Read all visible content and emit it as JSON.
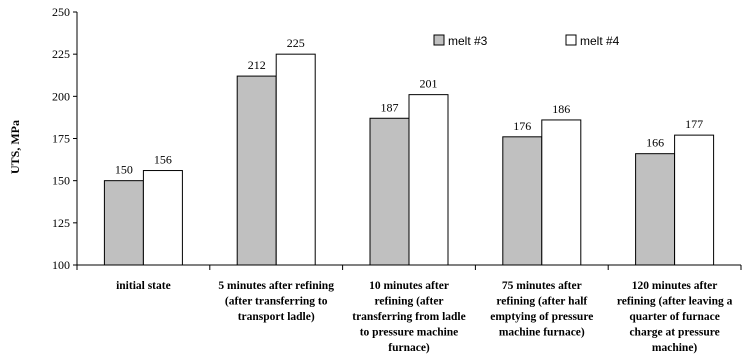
{
  "chart_data": {
    "type": "bar",
    "title": "",
    "xlabel": "",
    "ylabel": "UTS, MPa",
    "ylim": [
      100,
      250
    ],
    "yticks": [
      100,
      125,
      150,
      175,
      200,
      225,
      250
    ],
    "grid": false,
    "legend_position": "top-right",
    "categories": [
      [
        "initial state"
      ],
      [
        "5 minutes after refining",
        "(after transferring to",
        "transport ladle)"
      ],
      [
        "10 minutes after",
        "refining (after",
        "transferring from ladle",
        "to pressure machine",
        "furnace)"
      ],
      [
        "75 minutes after",
        "refining (after half",
        "emptying of pressure",
        "machine furnace)"
      ],
      [
        "120 minutes after",
        "refining (after leaving a",
        "quarter of furnace",
        "charge at pressure",
        "machine)"
      ]
    ],
    "series": [
      {
        "name": "melt #3",
        "values": [
          150,
          212,
          187,
          176,
          166
        ],
        "color": "#c0c0c0"
      },
      {
        "name": "melt #4",
        "values": [
          156,
          225,
          201,
          186,
          177
        ],
        "color": "#ffffff"
      }
    ]
  }
}
